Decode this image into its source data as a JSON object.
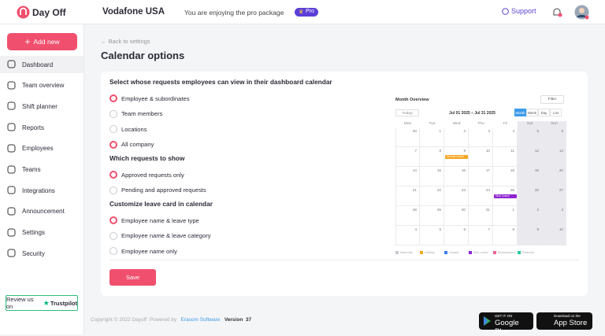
{
  "header": {
    "logo": "Day Off",
    "company": "Vodafone USA",
    "promo": "You are enjoying the pro package",
    "badge": "Pro",
    "support": "Support"
  },
  "sidebar": {
    "add_button": "Add new",
    "items": [
      {
        "label": "Dashboard",
        "active": true
      },
      {
        "label": "Team overview",
        "active": false
      },
      {
        "label": "Shift planner",
        "active": false
      },
      {
        "label": "Reports",
        "active": false
      },
      {
        "label": "Employees",
        "active": false
      },
      {
        "label": "Teams",
        "active": false
      },
      {
        "label": "Integrations",
        "active": false
      },
      {
        "label": "Announcement",
        "active": false
      },
      {
        "label": "Settings",
        "active": false
      },
      {
        "label": "Security",
        "active": false
      }
    ],
    "review": "Review us on",
    "trustpilot": "Trustpilot"
  },
  "main": {
    "back": "Back to settings",
    "title": "Calendar options",
    "save": "Save",
    "sections": [
      {
        "heading": "Select whose requests employees can view in their dashboard calendar",
        "options": [
          {
            "label": "Employee & subordinates",
            "checked": true
          },
          {
            "label": "Team members",
            "checked": false
          },
          {
            "label": "Locations",
            "checked": false
          },
          {
            "label": "All company",
            "checked": true
          }
        ]
      },
      {
        "heading": "Which requests to show",
        "options": [
          {
            "label": "Approved requests only",
            "checked": true
          },
          {
            "label": "Pending and approved requests",
            "checked": false
          }
        ]
      },
      {
        "heading": "Customize leave card in calendar",
        "options": [
          {
            "label": "Employee name & leave type",
            "checked": true
          },
          {
            "label": "Employee name & leave category",
            "checked": false
          },
          {
            "label": "Employee name only",
            "checked": false
          }
        ]
      }
    ]
  },
  "preview": {
    "title": "Month Overview",
    "filter": "Filter",
    "today": "Today",
    "range": "Jul 01 2025 – Jul 31 2025",
    "views": [
      "Month",
      "Week",
      "Day",
      "List"
    ],
    "weekdays": [
      "Mon",
      "Tue",
      "Wed",
      "Thu",
      "Fri",
      "Sat",
      "Sun"
    ],
    "weeks": [
      [
        "30",
        "1",
        "2",
        "3",
        "4",
        "5",
        "6"
      ],
      [
        "7",
        "8",
        "9",
        "10",
        "11",
        "12",
        "13"
      ],
      [
        "14",
        "15",
        "16",
        "17",
        "18",
        "19",
        "20"
      ],
      [
        "21",
        "22",
        "23",
        "24",
        "25",
        "26",
        "27"
      ],
      [
        "28",
        "29",
        "30",
        "31",
        "1",
        "2",
        "3"
      ],
      [
        "4",
        "5",
        "6",
        "7",
        "8",
        "9",
        "10"
      ]
    ],
    "events": [
      {
        "label": "Annual Leave",
        "week": 1,
        "day": 2,
        "color": "#f5a623"
      },
      {
        "label": "Sick Leave",
        "week": 3,
        "day": 4,
        "color": "#8e24d0"
      }
    ],
    "legend": [
      {
        "label": "Maternity",
        "color": "#c8c8d0"
      },
      {
        "label": "Holiday",
        "color": "#f5a623"
      },
      {
        "label": "Unpaid",
        "color": "#3d7bf0"
      },
      {
        "label": "Sick Leave",
        "color": "#8e24d0"
      },
      {
        "label": "Bereavement",
        "color": "#f06292"
      },
      {
        "label": "Paternity",
        "color": "#26c6a2"
      }
    ]
  },
  "footer": {
    "copyright": "Copyright © 2022 Dayoff",
    "powered": "Powered by",
    "company": "Erasom Software",
    "version_label": "Version",
    "version": "37",
    "google_small": "GET IT ON",
    "google": "Google Play",
    "apple_small": "Download on the",
    "apple": "App Store"
  }
}
